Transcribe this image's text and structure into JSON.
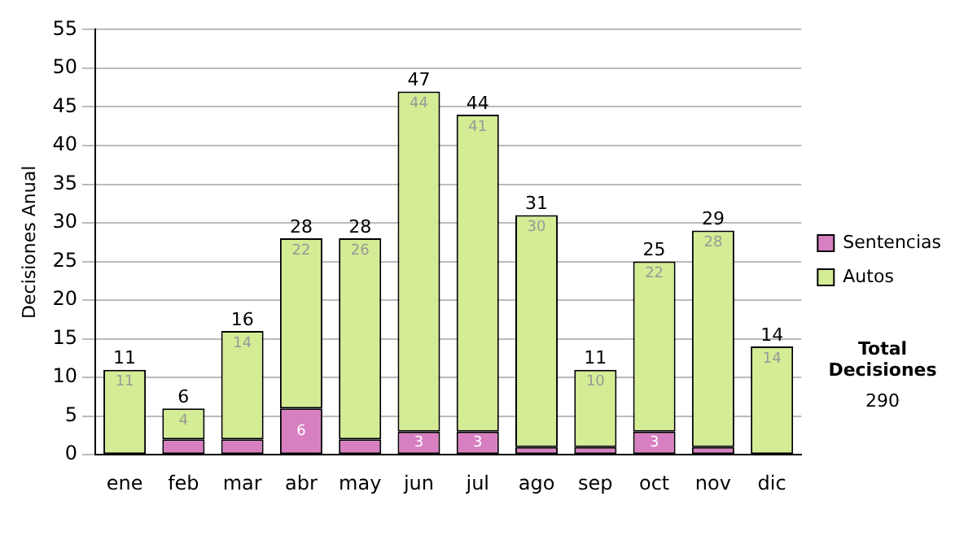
{
  "chart_data": {
    "type": "bar",
    "ylabel": "Decisiones Anual",
    "categories": [
      "ene",
      "feb",
      "mar",
      "abr",
      "may",
      "jun",
      "jul",
      "ago",
      "sep",
      "oct",
      "nov",
      "dic"
    ],
    "series": [
      {
        "name": "Sentencias",
        "color": "#d77fc1",
        "values": [
          0,
          2,
          2,
          6,
          2,
          3,
          3,
          1,
          1,
          3,
          1,
          0
        ],
        "value_labels": [
          null,
          null,
          null,
          "6",
          null,
          "3",
          "3",
          null,
          null,
          "3",
          null,
          null
        ]
      },
      {
        "name": "Autos",
        "color": "#d4ec94",
        "values": [
          11,
          4,
          14,
          22,
          26,
          44,
          41,
          30,
          10,
          22,
          28,
          14
        ],
        "value_labels": [
          "11",
          "4",
          "14",
          "22",
          "26",
          "44",
          "41",
          "30",
          "10",
          "22",
          "28",
          "14"
        ]
      }
    ],
    "stacked": true,
    "totals": [
      "11",
      "6",
      "16",
      "28",
      "28",
      "47",
      "44",
      "31",
      "11",
      "25",
      "29",
      "14"
    ],
    "ylim": [
      0,
      55
    ],
    "yticks": [
      0,
      5,
      10,
      15,
      20,
      25,
      30,
      35,
      40,
      45,
      50,
      55
    ],
    "grid": "y",
    "legend": "right",
    "annotations": [
      "Total Decisiones",
      "290"
    ]
  }
}
